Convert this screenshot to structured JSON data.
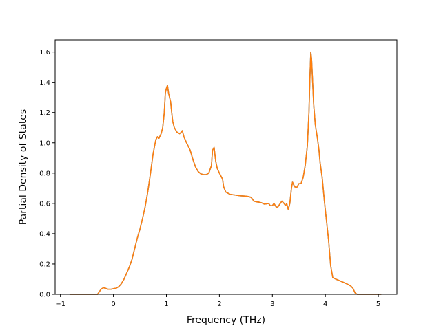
{
  "chart_data": {
    "type": "line",
    "title": "",
    "xlabel": "Frequency (THz)",
    "ylabel": "Partial Density of States",
    "xlim": [
      -1.1,
      5.35
    ],
    "ylim": [
      0,
      1.68
    ],
    "xticks": [
      -1,
      0,
      1,
      2,
      3,
      4,
      5
    ],
    "xtick_labels": [
      "−1",
      "0",
      "1",
      "2",
      "3",
      "4",
      "5"
    ],
    "yticks": [
      0.0,
      0.2,
      0.4,
      0.6,
      0.8,
      1.0,
      1.2,
      1.4,
      1.6
    ],
    "ytick_labels": [
      "0.0",
      "0.2",
      "0.4",
      "0.6",
      "0.8",
      "1.0",
      "1.2",
      "1.4",
      "1.6"
    ],
    "grid": false,
    "colors": {
      "series_under": "#1f77b4",
      "series_over": "#ff7f0e"
    },
    "series": [
      {
        "values_xy": [
          [
            -0.82,
            0
          ],
          [
            -0.5,
            0
          ],
          [
            -0.3,
            0
          ],
          [
            -0.27,
            0.015
          ],
          [
            -0.23,
            0.035
          ],
          [
            -0.19,
            0.043
          ],
          [
            -0.15,
            0.04
          ],
          [
            -0.1,
            0.033
          ],
          [
            -0.05,
            0.033
          ],
          [
            0,
            0.037
          ],
          [
            0.05,
            0.04
          ],
          [
            0.1,
            0.05
          ],
          [
            0.15,
            0.07
          ],
          [
            0.2,
            0.1
          ],
          [
            0.25,
            0.14
          ],
          [
            0.3,
            0.18
          ],
          [
            0.35,
            0.23
          ],
          [
            0.4,
            0.3
          ],
          [
            0.45,
            0.37
          ],
          [
            0.5,
            0.43
          ],
          [
            0.55,
            0.5
          ],
          [
            0.6,
            0.58
          ],
          [
            0.65,
            0.68
          ],
          [
            0.7,
            0.8
          ],
          [
            0.75,
            0.93
          ],
          [
            0.8,
            1.02
          ],
          [
            0.83,
            1.04
          ],
          [
            0.86,
            1.03
          ],
          [
            0.9,
            1.06
          ],
          [
            0.93,
            1.1
          ],
          [
            0.96,
            1.2
          ],
          [
            0.98,
            1.33
          ],
          [
            1.0,
            1.36
          ],
          [
            1.02,
            1.38
          ],
          [
            1.04,
            1.33
          ],
          [
            1.08,
            1.27
          ],
          [
            1.1,
            1.2
          ],
          [
            1.12,
            1.14
          ],
          [
            1.15,
            1.1
          ],
          [
            1.2,
            1.07
          ],
          [
            1.25,
            1.06
          ],
          [
            1.28,
            1.07
          ],
          [
            1.3,
            1.08
          ],
          [
            1.33,
            1.04
          ],
          [
            1.38,
            1.0
          ],
          [
            1.45,
            0.95
          ],
          [
            1.5,
            0.89
          ],
          [
            1.55,
            0.84
          ],
          [
            1.6,
            0.81
          ],
          [
            1.65,
            0.795
          ],
          [
            1.7,
            0.79
          ],
          [
            1.75,
            0.79
          ],
          [
            1.8,
            0.8
          ],
          [
            1.85,
            0.85
          ],
          [
            1.87,
            0.95
          ],
          [
            1.9,
            0.97
          ],
          [
            1.93,
            0.88
          ],
          [
            1.96,
            0.83
          ],
          [
            2.0,
            0.8
          ],
          [
            2.03,
            0.78
          ],
          [
            2.06,
            0.76
          ],
          [
            2.08,
            0.71
          ],
          [
            2.12,
            0.675
          ],
          [
            2.2,
            0.66
          ],
          [
            2.3,
            0.655
          ],
          [
            2.4,
            0.65
          ],
          [
            2.5,
            0.648
          ],
          [
            2.55,
            0.645
          ],
          [
            2.6,
            0.64
          ],
          [
            2.65,
            0.615
          ],
          [
            2.7,
            0.61
          ],
          [
            2.75,
            0.608
          ],
          [
            2.8,
            0.603
          ],
          [
            2.85,
            0.595
          ],
          [
            2.9,
            0.598
          ],
          [
            2.93,
            0.6
          ],
          [
            2.96,
            0.585
          ],
          [
            3.0,
            0.585
          ],
          [
            3.03,
            0.6
          ],
          [
            3.07,
            0.577
          ],
          [
            3.1,
            0.575
          ],
          [
            3.15,
            0.6
          ],
          [
            3.18,
            0.615
          ],
          [
            3.22,
            0.6
          ],
          [
            3.25,
            0.585
          ],
          [
            3.27,
            0.6
          ],
          [
            3.3,
            0.56
          ],
          [
            3.33,
            0.6
          ],
          [
            3.36,
            0.7
          ],
          [
            3.38,
            0.74
          ],
          [
            3.42,
            0.71
          ],
          [
            3.46,
            0.705
          ],
          [
            3.5,
            0.73
          ],
          [
            3.54,
            0.73
          ],
          [
            3.58,
            0.77
          ],
          [
            3.62,
            0.85
          ],
          [
            3.66,
            0.98
          ],
          [
            3.69,
            1.2
          ],
          [
            3.71,
            1.45
          ],
          [
            3.725,
            1.6
          ],
          [
            3.74,
            1.55
          ],
          [
            3.76,
            1.4
          ],
          [
            3.78,
            1.25
          ],
          [
            3.81,
            1.12
          ],
          [
            3.85,
            1.03
          ],
          [
            3.88,
            0.95
          ],
          [
            3.9,
            0.87
          ],
          [
            3.94,
            0.77
          ],
          [
            3.98,
            0.62
          ],
          [
            4.02,
            0.49
          ],
          [
            4.06,
            0.36
          ],
          [
            4.1,
            0.19
          ],
          [
            4.14,
            0.11
          ],
          [
            4.2,
            0.1
          ],
          [
            4.3,
            0.085
          ],
          [
            4.4,
            0.07
          ],
          [
            4.48,
            0.055
          ],
          [
            4.52,
            0.04
          ],
          [
            4.56,
            0.01
          ],
          [
            4.6,
            0
          ],
          [
            5.0,
            0
          ],
          [
            5.05,
            0
          ]
        ]
      },
      {
        "values_xy": "same"
      }
    ]
  }
}
